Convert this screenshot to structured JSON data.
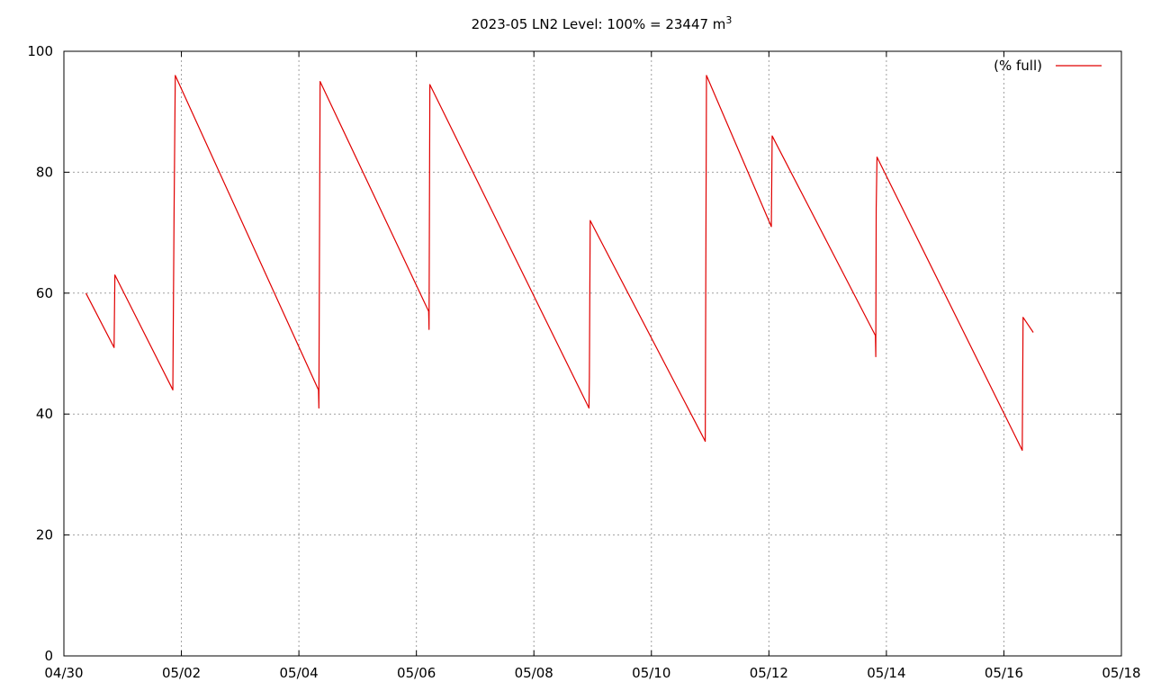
{
  "chart_data": {
    "type": "line",
    "title_main": "2023-05 LN2 Level: 100% = 23447 m",
    "title_sup": "3",
    "xlim": [
      "04/30",
      "05/18"
    ],
    "ylim": [
      0,
      100
    ],
    "x_ticks": [
      "04/30",
      "05/02",
      "05/04",
      "05/06",
      "05/08",
      "05/10",
      "05/12",
      "05/14",
      "05/16",
      "05/18"
    ],
    "y_ticks": [
      0,
      20,
      40,
      60,
      80,
      100
    ],
    "grid": true,
    "legend_position": "top-right",
    "colors": {
      "series": "#e00000",
      "grid": "#a0a0a0",
      "axis": "#000000"
    },
    "series": [
      {
        "name": "(% full)",
        "points": [
          [
            "04/30 09:00",
            60.0
          ],
          [
            "04/30 20:30",
            51.0
          ],
          [
            "04/30 20:50",
            63.0
          ],
          [
            "05/01 20:30",
            44.0
          ],
          [
            "05/01 21:00",
            73.0
          ],
          [
            "05/01 21:30",
            96.0
          ],
          [
            "05/04 08:00",
            44.0
          ],
          [
            "05/04 08:10",
            41.0
          ],
          [
            "05/04 08:20",
            60.0
          ],
          [
            "05/04 08:40",
            95.0
          ],
          [
            "05/06 05:00",
            57.0
          ],
          [
            "05/06 05:10",
            54.0
          ],
          [
            "05/06 05:30",
            94.5
          ],
          [
            "05/08 22:30",
            41.0
          ],
          [
            "05/08 22:40",
            46.0
          ],
          [
            "05/08 23:00",
            72.0
          ],
          [
            "05/10 22:00",
            35.5
          ],
          [
            "05/10 22:10",
            56.0
          ],
          [
            "05/10 22:30",
            96.0
          ],
          [
            "05/12 01:00",
            71.0
          ],
          [
            "05/12 01:20",
            86.0
          ],
          [
            "05/13 19:30",
            53.0
          ],
          [
            "05/13 19:40",
            49.5
          ],
          [
            "05/13 19:50",
            74.0
          ],
          [
            "05/13 20:10",
            82.5
          ],
          [
            "05/16 07:30",
            34.0
          ],
          [
            "05/16 07:50",
            56.0
          ],
          [
            "05/16 12:00",
            53.5
          ]
        ]
      }
    ]
  }
}
